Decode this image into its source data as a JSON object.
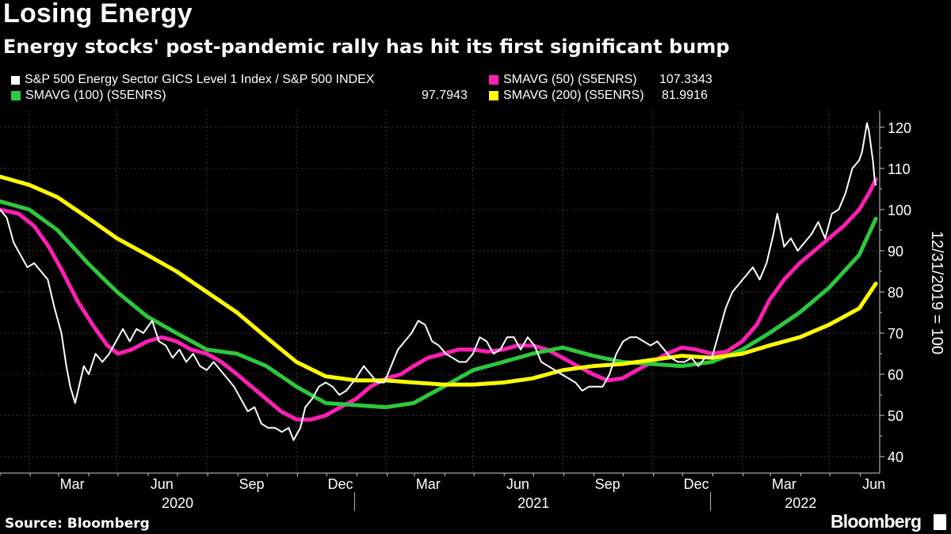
{
  "title": "Losing Energy",
  "subtitle": "Energy stocks' post-pandemic rally has hit its first significant bump",
  "source": "Source: Bloomberg",
  "brand": "Bloomberg",
  "legend": [
    {
      "label": "S&P 500 Energy Sector GICS Level 1 Index / S&P 500 INDEX",
      "value": "",
      "color": "#ffffff"
    },
    {
      "label": "SMAVG (50) (S5ENRS)",
      "value": "107.3343",
      "color": "#ff1fb4"
    },
    {
      "label": "SMAVG (100) (S5ENRS)",
      "value": "97.7943",
      "color": "#2dc83c"
    },
    {
      "label": "SMAVG (200) (S5ENRS)",
      "value": "81.9916",
      "color": "#ffff00"
    }
  ],
  "chart_data": {
    "type": "line",
    "ylabel": "12/31/2019 = 100",
    "ylim": [
      36,
      124
    ],
    "yticks": [
      40,
      50,
      60,
      70,
      80,
      90,
      100,
      110,
      120
    ],
    "x_months": [
      "Mar",
      "Jun",
      "Sep",
      "Dec",
      "Mar",
      "Jun",
      "Sep",
      "Dec",
      "Mar",
      "Jun"
    ],
    "x_years": [
      "2020",
      "2021",
      "2022"
    ],
    "grid": true,
    "legend_position": "top",
    "series": [
      {
        "name": "S&P 500 Energy Sector GICS Level 1 Index / S&P 500 INDEX",
        "color": "#ffffff",
        "points": [
          [
            "2020-01-01",
            100
          ],
          [
            "2020-01-08",
            98
          ],
          [
            "2020-01-15",
            92
          ],
          [
            "2020-01-22",
            89
          ],
          [
            "2020-01-29",
            86
          ],
          [
            "2020-02-05",
            87
          ],
          [
            "2020-02-12",
            85
          ],
          [
            "2020-02-19",
            83
          ],
          [
            "2020-02-26",
            76
          ],
          [
            "2020-03-04",
            70
          ],
          [
            "2020-03-09",
            62
          ],
          [
            "2020-03-13",
            57
          ],
          [
            "2020-03-18",
            53
          ],
          [
            "2020-03-23",
            58
          ],
          [
            "2020-03-27",
            62
          ],
          [
            "2020-04-01",
            60
          ],
          [
            "2020-04-08",
            65
          ],
          [
            "2020-04-15",
            63
          ],
          [
            "2020-04-22",
            65
          ],
          [
            "2020-04-29",
            68
          ],
          [
            "2020-05-06",
            71
          ],
          [
            "2020-05-13",
            68
          ],
          [
            "2020-05-20",
            71
          ],
          [
            "2020-05-27",
            70
          ],
          [
            "2020-06-05",
            73
          ],
          [
            "2020-06-12",
            68
          ],
          [
            "2020-06-19",
            67
          ],
          [
            "2020-06-26",
            64
          ],
          [
            "2020-07-03",
            66
          ],
          [
            "2020-07-10",
            63
          ],
          [
            "2020-07-17",
            65
          ],
          [
            "2020-07-24",
            62
          ],
          [
            "2020-07-31",
            61
          ],
          [
            "2020-08-07",
            63
          ],
          [
            "2020-08-14",
            61
          ],
          [
            "2020-08-21",
            59
          ],
          [
            "2020-08-28",
            57
          ],
          [
            "2020-09-04",
            54
          ],
          [
            "2020-09-11",
            51
          ],
          [
            "2020-09-18",
            52
          ],
          [
            "2020-09-25",
            48
          ],
          [
            "2020-10-02",
            47
          ],
          [
            "2020-10-09",
            47
          ],
          [
            "2020-10-16",
            46
          ],
          [
            "2020-10-23",
            47
          ],
          [
            "2020-10-28",
            44
          ],
          [
            "2020-11-04",
            47
          ],
          [
            "2020-11-09",
            52
          ],
          [
            "2020-11-16",
            54
          ],
          [
            "2020-11-23",
            57
          ],
          [
            "2020-11-30",
            58
          ],
          [
            "2020-12-07",
            57
          ],
          [
            "2020-12-14",
            55
          ],
          [
            "2020-12-21",
            56
          ],
          [
            "2020-12-31",
            59
          ],
          [
            "2021-01-08",
            62
          ],
          [
            "2021-01-15",
            60
          ],
          [
            "2021-01-22",
            58
          ],
          [
            "2021-01-29",
            58
          ],
          [
            "2021-02-05",
            62
          ],
          [
            "2021-02-12",
            66
          ],
          [
            "2021-02-19",
            68
          ],
          [
            "2021-02-26",
            70
          ],
          [
            "2021-03-05",
            73
          ],
          [
            "2021-03-12",
            72
          ],
          [
            "2021-03-19",
            68
          ],
          [
            "2021-03-26",
            67
          ],
          [
            "2021-04-02",
            65
          ],
          [
            "2021-04-09",
            64
          ],
          [
            "2021-04-16",
            63
          ],
          [
            "2021-04-23",
            63
          ],
          [
            "2021-04-30",
            65
          ],
          [
            "2021-05-07",
            69
          ],
          [
            "2021-05-14",
            68
          ],
          [
            "2021-05-21",
            65
          ],
          [
            "2021-05-28",
            66
          ],
          [
            "2021-06-04",
            69
          ],
          [
            "2021-06-11",
            69
          ],
          [
            "2021-06-18",
            66
          ],
          [
            "2021-06-25",
            69
          ],
          [
            "2021-07-02",
            67
          ],
          [
            "2021-07-09",
            63
          ],
          [
            "2021-07-16",
            62
          ],
          [
            "2021-07-23",
            61
          ],
          [
            "2021-07-30",
            60
          ],
          [
            "2021-08-06",
            59
          ],
          [
            "2021-08-13",
            58
          ],
          [
            "2021-08-20",
            56
          ],
          [
            "2021-08-27",
            57
          ],
          [
            "2021-09-03",
            57
          ],
          [
            "2021-09-10",
            57
          ],
          [
            "2021-09-17",
            60
          ],
          [
            "2021-09-24",
            65
          ],
          [
            "2021-10-01",
            68
          ],
          [
            "2021-10-08",
            69
          ],
          [
            "2021-10-15",
            69
          ],
          [
            "2021-10-22",
            68
          ],
          [
            "2021-10-29",
            67
          ],
          [
            "2021-11-05",
            68
          ],
          [
            "2021-11-12",
            66
          ],
          [
            "2021-11-19",
            64
          ],
          [
            "2021-11-26",
            63
          ],
          [
            "2021-12-03",
            63
          ],
          [
            "2021-12-10",
            64
          ],
          [
            "2021-12-17",
            62
          ],
          [
            "2021-12-24",
            64
          ],
          [
            "2021-12-31",
            64
          ],
          [
            "2022-01-07",
            70
          ],
          [
            "2022-01-14",
            76
          ],
          [
            "2022-01-21",
            80
          ],
          [
            "2022-01-28",
            82
          ],
          [
            "2022-02-04",
            84
          ],
          [
            "2022-02-11",
            86
          ],
          [
            "2022-02-18",
            83
          ],
          [
            "2022-02-25",
            87
          ],
          [
            "2022-03-04",
            94
          ],
          [
            "2022-03-08",
            99
          ],
          [
            "2022-03-15",
            91
          ],
          [
            "2022-03-22",
            93
          ],
          [
            "2022-03-29",
            90
          ],
          [
            "2022-04-05",
            92
          ],
          [
            "2022-04-12",
            94
          ],
          [
            "2022-04-19",
            97
          ],
          [
            "2022-04-26",
            93
          ],
          [
            "2022-05-03",
            99
          ],
          [
            "2022-05-10",
            100
          ],
          [
            "2022-05-17",
            104
          ],
          [
            "2022-05-24",
            110
          ],
          [
            "2022-05-31",
            112
          ],
          [
            "2022-06-03",
            114
          ],
          [
            "2022-06-08",
            121
          ],
          [
            "2022-06-10",
            119
          ],
          [
            "2022-06-14",
            112
          ],
          [
            "2022-06-16",
            107
          ],
          [
            "2022-06-17",
            106
          ]
        ]
      },
      {
        "name": "SMAVG (50) (S5ENRS)",
        "color": "#ff1fb4",
        "points": [
          [
            "2020-01-01",
            100
          ],
          [
            "2020-01-20",
            99
          ],
          [
            "2020-02-05",
            96
          ],
          [
            "2020-02-20",
            91
          ],
          [
            "2020-03-05",
            85
          ],
          [
            "2020-03-20",
            78
          ],
          [
            "2020-04-05",
            72
          ],
          [
            "2020-04-20",
            67
          ],
          [
            "2020-05-01",
            65
          ],
          [
            "2020-05-15",
            66
          ],
          [
            "2020-05-31",
            68
          ],
          [
            "2020-06-15",
            69
          ],
          [
            "2020-06-30",
            68
          ],
          [
            "2020-07-15",
            66
          ],
          [
            "2020-07-31",
            65
          ],
          [
            "2020-08-15",
            63
          ],
          [
            "2020-08-31",
            60
          ],
          [
            "2020-09-15",
            57
          ],
          [
            "2020-09-30",
            54
          ],
          [
            "2020-10-15",
            51
          ],
          [
            "2020-10-31",
            49
          ],
          [
            "2020-11-15",
            49
          ],
          [
            "2020-11-30",
            50
          ],
          [
            "2020-12-15",
            52
          ],
          [
            "2020-12-31",
            54
          ],
          [
            "2021-01-15",
            57
          ],
          [
            "2021-01-31",
            59
          ],
          [
            "2021-02-15",
            60
          ],
          [
            "2021-02-28",
            62
          ],
          [
            "2021-03-15",
            64
          ],
          [
            "2021-03-31",
            65
          ],
          [
            "2021-04-15",
            66
          ],
          [
            "2021-04-30",
            66
          ],
          [
            "2021-05-15",
            65.5
          ],
          [
            "2021-05-31",
            66
          ],
          [
            "2021-06-15",
            67
          ],
          [
            "2021-06-30",
            67
          ],
          [
            "2021-07-15",
            66
          ],
          [
            "2021-07-31",
            64
          ],
          [
            "2021-08-15",
            62
          ],
          [
            "2021-08-31",
            60
          ],
          [
            "2021-09-15",
            58.5
          ],
          [
            "2021-09-30",
            59
          ],
          [
            "2021-10-15",
            61
          ],
          [
            "2021-10-31",
            63
          ],
          [
            "2021-11-15",
            65
          ],
          [
            "2021-11-30",
            66.5
          ],
          [
            "2021-12-15",
            66
          ],
          [
            "2021-12-31",
            65
          ],
          [
            "2022-01-15",
            65.5
          ],
          [
            "2022-01-31",
            68
          ],
          [
            "2022-02-15",
            72
          ],
          [
            "2022-02-28",
            78
          ],
          [
            "2022-03-15",
            83
          ],
          [
            "2022-03-31",
            87
          ],
          [
            "2022-04-15",
            90
          ],
          [
            "2022-04-30",
            93
          ],
          [
            "2022-05-15",
            96
          ],
          [
            "2022-05-31",
            100
          ],
          [
            "2022-06-10",
            104
          ],
          [
            "2022-06-17",
            107.3
          ]
        ]
      },
      {
        "name": "SMAVG (100) (S5ENRS)",
        "color": "#2dc83c",
        "points": [
          [
            "2020-01-01",
            102
          ],
          [
            "2020-01-31",
            100
          ],
          [
            "2020-02-29",
            95
          ],
          [
            "2020-03-31",
            87
          ],
          [
            "2020-04-30",
            80
          ],
          [
            "2020-05-31",
            74
          ],
          [
            "2020-06-30",
            70
          ],
          [
            "2020-07-31",
            66
          ],
          [
            "2020-08-31",
            65
          ],
          [
            "2020-09-30",
            62
          ],
          [
            "2020-10-31",
            57
          ],
          [
            "2020-11-30",
            53
          ],
          [
            "2020-12-31",
            52.5
          ],
          [
            "2021-01-31",
            52
          ],
          [
            "2021-02-28",
            53
          ],
          [
            "2021-03-31",
            57
          ],
          [
            "2021-04-30",
            61
          ],
          [
            "2021-05-31",
            63
          ],
          [
            "2021-06-30",
            65
          ],
          [
            "2021-07-31",
            66.5
          ],
          [
            "2021-08-31",
            64.5
          ],
          [
            "2021-09-30",
            63
          ],
          [
            "2021-10-31",
            62.5
          ],
          [
            "2021-11-30",
            62
          ],
          [
            "2021-12-31",
            63
          ],
          [
            "2022-01-31",
            66
          ],
          [
            "2022-02-28",
            70
          ],
          [
            "2022-03-31",
            75
          ],
          [
            "2022-04-30",
            81
          ],
          [
            "2022-05-31",
            89
          ],
          [
            "2022-06-17",
            97.8
          ]
        ]
      },
      {
        "name": "SMAVG (200) (S5ENRS)",
        "color": "#ffff00",
        "points": [
          [
            "2020-01-01",
            108
          ],
          [
            "2020-01-31",
            106
          ],
          [
            "2020-02-29",
            103
          ],
          [
            "2020-03-31",
            98
          ],
          [
            "2020-04-30",
            93
          ],
          [
            "2020-05-31",
            89
          ],
          [
            "2020-06-30",
            85
          ],
          [
            "2020-07-31",
            80
          ],
          [
            "2020-08-31",
            75
          ],
          [
            "2020-09-30",
            69
          ],
          [
            "2020-10-31",
            63
          ],
          [
            "2020-11-30",
            59.5
          ],
          [
            "2020-12-31",
            58.5
          ],
          [
            "2021-01-31",
            58.5
          ],
          [
            "2021-02-28",
            58
          ],
          [
            "2021-03-31",
            57.5
          ],
          [
            "2021-04-30",
            57.5
          ],
          [
            "2021-05-31",
            58
          ],
          [
            "2021-06-30",
            59
          ],
          [
            "2021-07-31",
            61
          ],
          [
            "2021-08-31",
            62
          ],
          [
            "2021-09-30",
            62.5
          ],
          [
            "2021-10-31",
            63.5
          ],
          [
            "2021-11-30",
            64.5
          ],
          [
            "2021-12-31",
            64
          ],
          [
            "2022-01-31",
            65
          ],
          [
            "2022-02-28",
            67
          ],
          [
            "2022-03-31",
            69
          ],
          [
            "2022-04-30",
            72
          ],
          [
            "2022-05-31",
            76
          ],
          [
            "2022-06-17",
            82
          ]
        ]
      }
    ]
  }
}
